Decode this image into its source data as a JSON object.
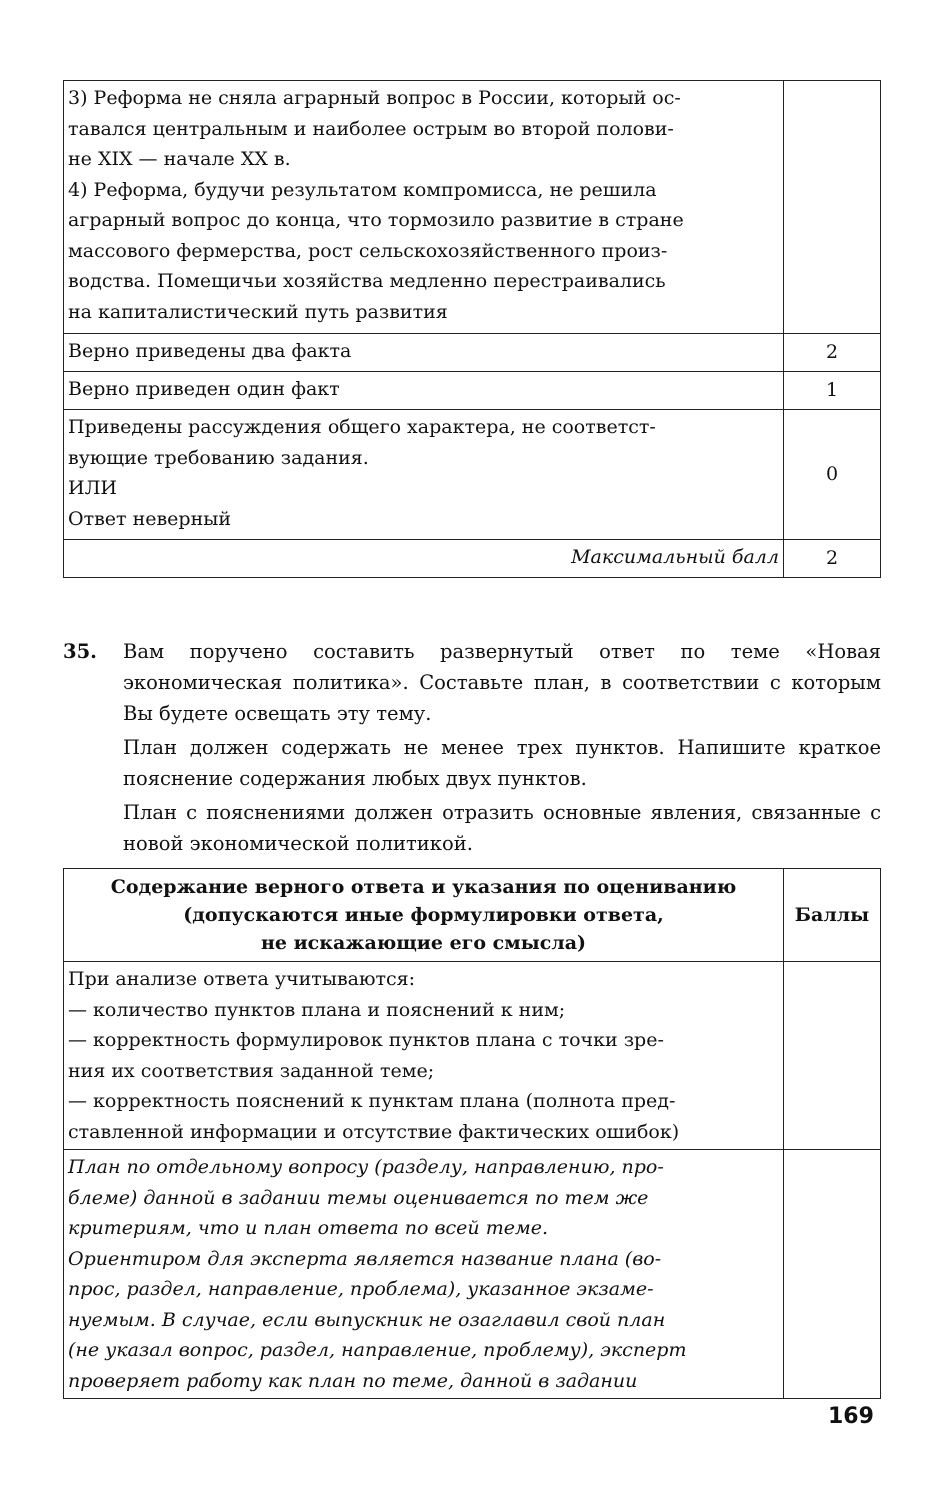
{
  "table1": {
    "rows": [
      {
        "lines": [
          "3) Реформа не сняла аграрный вопрос в России, который ос-",
          "тавался центральным и наиболее острым во второй полови-",
          "не XIX — начале XX в.",
          "4) Реформа, будучи результатом компромисса, не решила",
          "аграрный вопрос до конца, что тормозило развитие в стране",
          "массового фермерства, рост сельскохозяйственного произ-",
          "водства. Помещичьи хозяйства медленно перестраивались",
          "на капиталистический путь развития"
        ],
        "score": ""
      },
      {
        "lines": [
          "Верно приведены два факта"
        ],
        "score": "2"
      },
      {
        "lines": [
          "Верно приведен один факт"
        ],
        "score": "1"
      },
      {
        "lines": [
          "Приведены рассуждения общего характера, не соответст-",
          "вующие требованию задания.",
          "ИЛИ",
          "Ответ неверный"
        ],
        "score": "0"
      },
      {
        "lines": [
          "Максимальный балл"
        ],
        "score": "2"
      }
    ]
  },
  "question": {
    "number": "35.",
    "paragraphs": [
      "Вам поручено составить развернутый ответ по теме «Новая экономическая политика». Составьте план, в соответствии с которым Вы будете освещать эту тему.",
      "План должен содержать не менее трех пунктов. Напишите краткое пояснение содержания любых двух пунктов.",
      "План с пояснениями должен отразить основные явления, связанные с новой экономической политикой."
    ]
  },
  "table2": {
    "header": {
      "lines": [
        "Содержание верного ответа и указания по оцениванию",
        "(допускаются иные формулировки ответа,",
        "не искажающие его смысла)"
      ],
      "score": "Баллы"
    },
    "rows": [
      {
        "lines": [
          "При анализе ответа учитываются:",
          "— количество пунктов плана и пояснений к ним;",
          "— корректность формулировок пунктов плана с точки зре-",
          "ния их соответствия заданной теме;",
          "— корректность пояснений к пунктам плана (полнота пред-",
          "ставленной информации и отсутствие фактических ошибок)"
        ]
      },
      {
        "lines": [
          "План по отдельному вопросу (разделу, направлению, про-",
          "блеме) данной в задании темы оценивается по тем же",
          "критериям, что и план ответа по всей теме.",
          "Ориентиром для эксперта является название плана (во-",
          "прос, раздел, направление, проблема), указанное экзаме-",
          "нуемым. В случае, если выпускник не озаглавил свой план",
          "(не указал вопрос, раздел, направление, проблему), эксперт",
          "проверяет работу как план по теме, данной в задании"
        ]
      }
    ]
  },
  "page_number": "169"
}
